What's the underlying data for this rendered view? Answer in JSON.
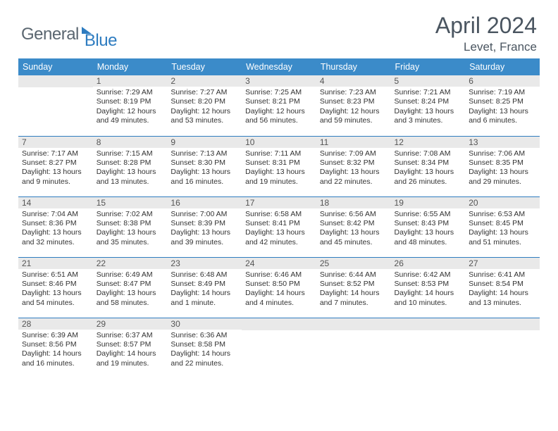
{
  "logo": {
    "text1": "General",
    "text2": "Blue"
  },
  "title": "April 2024",
  "location": "Levet, France",
  "weekdays": [
    "Sunday",
    "Monday",
    "Tuesday",
    "Wednesday",
    "Thursday",
    "Friday",
    "Saturday"
  ],
  "colors": {
    "header_bg": "#3b8bc9",
    "header_text": "#ffffff",
    "border": "#2e7cc0",
    "daynum_bg": "#e9e9e9",
    "daynum_text": "#555555",
    "body_text": "#323232",
    "logo_gray": "#5a6670",
    "logo_blue": "#2e7cc0",
    "title_color": "#4a5560"
  },
  "weeks": [
    [
      {
        "day": "",
        "sunrise": "",
        "sunset": "",
        "daylight": ""
      },
      {
        "day": "1",
        "sunrise": "Sunrise: 7:29 AM",
        "sunset": "Sunset: 8:19 PM",
        "daylight": "Daylight: 12 hours and 49 minutes."
      },
      {
        "day": "2",
        "sunrise": "Sunrise: 7:27 AM",
        "sunset": "Sunset: 8:20 PM",
        "daylight": "Daylight: 12 hours and 53 minutes."
      },
      {
        "day": "3",
        "sunrise": "Sunrise: 7:25 AM",
        "sunset": "Sunset: 8:21 PM",
        "daylight": "Daylight: 12 hours and 56 minutes."
      },
      {
        "day": "4",
        "sunrise": "Sunrise: 7:23 AM",
        "sunset": "Sunset: 8:23 PM",
        "daylight": "Daylight: 12 hours and 59 minutes."
      },
      {
        "day": "5",
        "sunrise": "Sunrise: 7:21 AM",
        "sunset": "Sunset: 8:24 PM",
        "daylight": "Daylight: 13 hours and 3 minutes."
      },
      {
        "day": "6",
        "sunrise": "Sunrise: 7:19 AM",
        "sunset": "Sunset: 8:25 PM",
        "daylight": "Daylight: 13 hours and 6 minutes."
      }
    ],
    [
      {
        "day": "7",
        "sunrise": "Sunrise: 7:17 AM",
        "sunset": "Sunset: 8:27 PM",
        "daylight": "Daylight: 13 hours and 9 minutes."
      },
      {
        "day": "8",
        "sunrise": "Sunrise: 7:15 AM",
        "sunset": "Sunset: 8:28 PM",
        "daylight": "Daylight: 13 hours and 13 minutes."
      },
      {
        "day": "9",
        "sunrise": "Sunrise: 7:13 AM",
        "sunset": "Sunset: 8:30 PM",
        "daylight": "Daylight: 13 hours and 16 minutes."
      },
      {
        "day": "10",
        "sunrise": "Sunrise: 7:11 AM",
        "sunset": "Sunset: 8:31 PM",
        "daylight": "Daylight: 13 hours and 19 minutes."
      },
      {
        "day": "11",
        "sunrise": "Sunrise: 7:09 AM",
        "sunset": "Sunset: 8:32 PM",
        "daylight": "Daylight: 13 hours and 22 minutes."
      },
      {
        "day": "12",
        "sunrise": "Sunrise: 7:08 AM",
        "sunset": "Sunset: 8:34 PM",
        "daylight": "Daylight: 13 hours and 26 minutes."
      },
      {
        "day": "13",
        "sunrise": "Sunrise: 7:06 AM",
        "sunset": "Sunset: 8:35 PM",
        "daylight": "Daylight: 13 hours and 29 minutes."
      }
    ],
    [
      {
        "day": "14",
        "sunrise": "Sunrise: 7:04 AM",
        "sunset": "Sunset: 8:36 PM",
        "daylight": "Daylight: 13 hours and 32 minutes."
      },
      {
        "day": "15",
        "sunrise": "Sunrise: 7:02 AM",
        "sunset": "Sunset: 8:38 PM",
        "daylight": "Daylight: 13 hours and 35 minutes."
      },
      {
        "day": "16",
        "sunrise": "Sunrise: 7:00 AM",
        "sunset": "Sunset: 8:39 PM",
        "daylight": "Daylight: 13 hours and 39 minutes."
      },
      {
        "day": "17",
        "sunrise": "Sunrise: 6:58 AM",
        "sunset": "Sunset: 8:41 PM",
        "daylight": "Daylight: 13 hours and 42 minutes."
      },
      {
        "day": "18",
        "sunrise": "Sunrise: 6:56 AM",
        "sunset": "Sunset: 8:42 PM",
        "daylight": "Daylight: 13 hours and 45 minutes."
      },
      {
        "day": "19",
        "sunrise": "Sunrise: 6:55 AM",
        "sunset": "Sunset: 8:43 PM",
        "daylight": "Daylight: 13 hours and 48 minutes."
      },
      {
        "day": "20",
        "sunrise": "Sunrise: 6:53 AM",
        "sunset": "Sunset: 8:45 PM",
        "daylight": "Daylight: 13 hours and 51 minutes."
      }
    ],
    [
      {
        "day": "21",
        "sunrise": "Sunrise: 6:51 AM",
        "sunset": "Sunset: 8:46 PM",
        "daylight": "Daylight: 13 hours and 54 minutes."
      },
      {
        "day": "22",
        "sunrise": "Sunrise: 6:49 AM",
        "sunset": "Sunset: 8:47 PM",
        "daylight": "Daylight: 13 hours and 58 minutes."
      },
      {
        "day": "23",
        "sunrise": "Sunrise: 6:48 AM",
        "sunset": "Sunset: 8:49 PM",
        "daylight": "Daylight: 14 hours and 1 minute."
      },
      {
        "day": "24",
        "sunrise": "Sunrise: 6:46 AM",
        "sunset": "Sunset: 8:50 PM",
        "daylight": "Daylight: 14 hours and 4 minutes."
      },
      {
        "day": "25",
        "sunrise": "Sunrise: 6:44 AM",
        "sunset": "Sunset: 8:52 PM",
        "daylight": "Daylight: 14 hours and 7 minutes."
      },
      {
        "day": "26",
        "sunrise": "Sunrise: 6:42 AM",
        "sunset": "Sunset: 8:53 PM",
        "daylight": "Daylight: 14 hours and 10 minutes."
      },
      {
        "day": "27",
        "sunrise": "Sunrise: 6:41 AM",
        "sunset": "Sunset: 8:54 PM",
        "daylight": "Daylight: 14 hours and 13 minutes."
      }
    ],
    [
      {
        "day": "28",
        "sunrise": "Sunrise: 6:39 AM",
        "sunset": "Sunset: 8:56 PM",
        "daylight": "Daylight: 14 hours and 16 minutes."
      },
      {
        "day": "29",
        "sunrise": "Sunrise: 6:37 AM",
        "sunset": "Sunset: 8:57 PM",
        "daylight": "Daylight: 14 hours and 19 minutes."
      },
      {
        "day": "30",
        "sunrise": "Sunrise: 6:36 AM",
        "sunset": "Sunset: 8:58 PM",
        "daylight": "Daylight: 14 hours and 22 minutes."
      },
      {
        "day": "",
        "sunrise": "",
        "sunset": "",
        "daylight": ""
      },
      {
        "day": "",
        "sunrise": "",
        "sunset": "",
        "daylight": ""
      },
      {
        "day": "",
        "sunrise": "",
        "sunset": "",
        "daylight": ""
      },
      {
        "day": "",
        "sunrise": "",
        "sunset": "",
        "daylight": ""
      }
    ]
  ]
}
